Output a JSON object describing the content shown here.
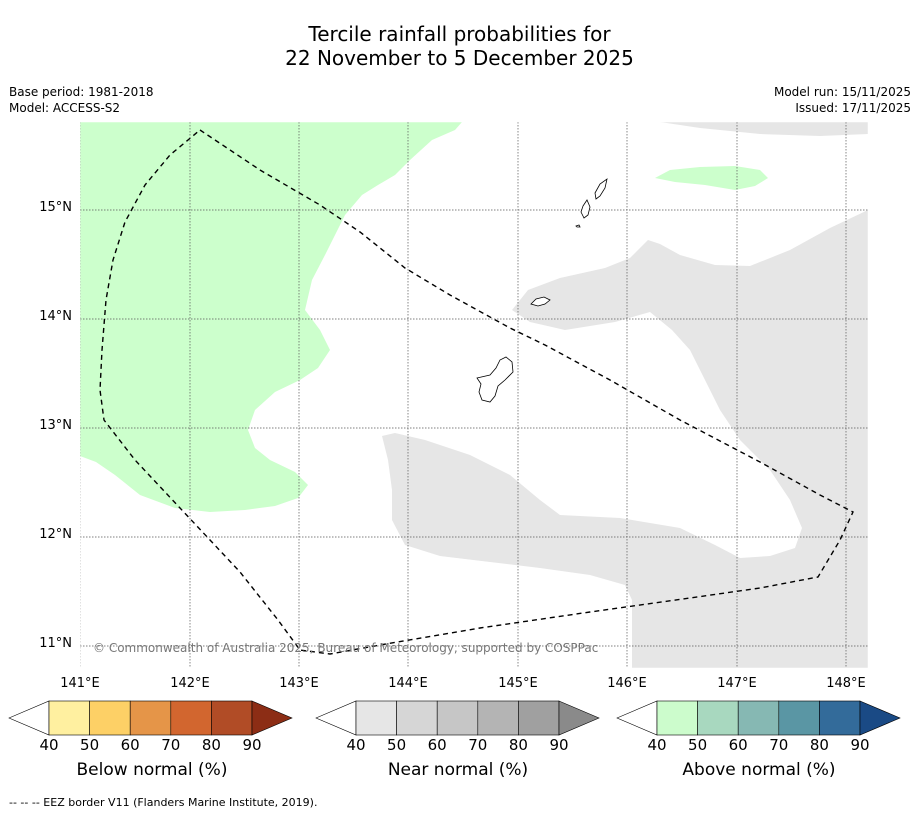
{
  "title": {
    "line1": "Tercile rainfall probabilities for",
    "line2": "22 November to 5 December 2025"
  },
  "meta_left": {
    "base_period": "Base period: 1981-2018",
    "model": "Model: ACCESS-S2"
  },
  "meta_right": {
    "model_run": "Model run: 15/11/2025",
    "issued": "Issued: 17/11/2025"
  },
  "map": {
    "latitude_labels": [
      "15°N",
      "14°N",
      "13°N",
      "12°N",
      "11°N"
    ],
    "longitude_labels": [
      "141°E",
      "142°E",
      "143°E",
      "144°E",
      "145°E",
      "146°E",
      "147°E",
      "148°E"
    ],
    "copyright": "© Commonwealth of Australia 2025, Bureau of Meteorology, supported by COSPPac",
    "colors": {
      "above_normal_fill": "#ccffcc",
      "near_normal_fill": "#e6e6e6",
      "land_outline": "#000000",
      "eez_border": "#000000"
    }
  },
  "colorbars": [
    {
      "label": "Below normal (%)",
      "ticks": [
        "40",
        "50",
        "60",
        "70",
        "80",
        "90"
      ],
      "colors": [
        "#ffffff",
        "#fff0a0",
        "#fdd066",
        "#e59548",
        "#d2662f",
        "#b14c26",
        "#8c2d15"
      ]
    },
    {
      "label": "Near normal (%)",
      "ticks": [
        "40",
        "50",
        "60",
        "70",
        "80",
        "90"
      ],
      "colors": [
        "#ffffff",
        "#e6e6e6",
        "#d6d6d6",
        "#c6c6c6",
        "#b4b4b4",
        "#a0a0a0",
        "#8a8a8a"
      ]
    },
    {
      "label": "Above normal (%)",
      "ticks": [
        "40",
        "50",
        "60",
        "70",
        "80",
        "90"
      ],
      "colors": [
        "#ffffff",
        "#ccfccc",
        "#a8d8bf",
        "#86b8b3",
        "#5a96a4",
        "#336b9a",
        "#1a4a85"
      ]
    }
  ],
  "footnote": "--  --  -- EEZ border V11 (Flanders Marine Institute, 2019)."
}
